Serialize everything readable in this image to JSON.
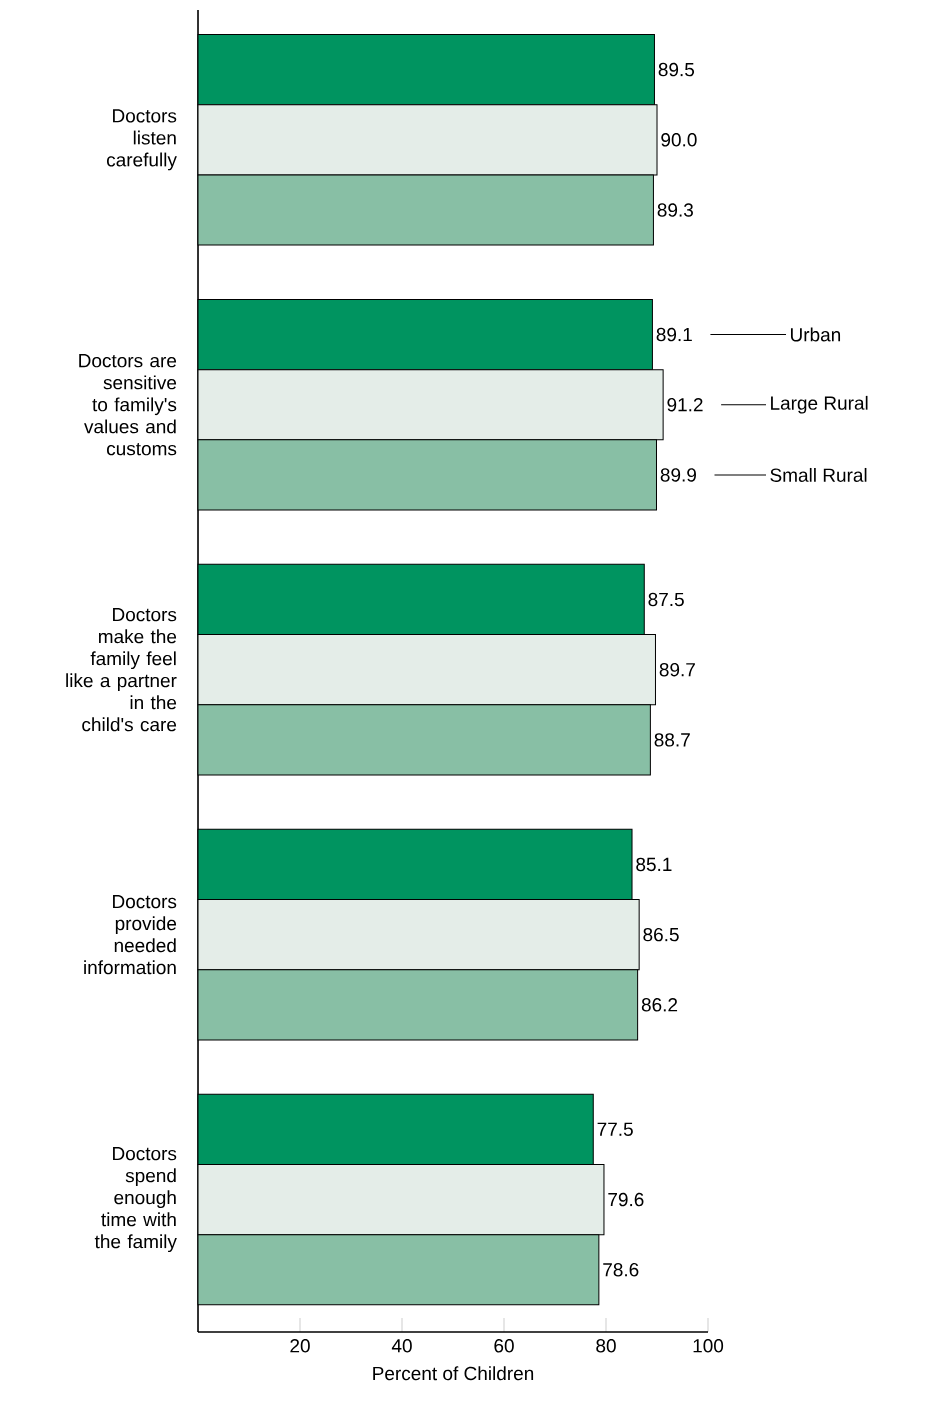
{
  "chart_data": {
    "type": "bar",
    "orientation": "horizontal",
    "xlabel": "Percent of Children",
    "categories": [
      "Doctors listen carefully",
      "Doctors are sensitive to family's values and customs",
      "Doctors make the family feel like a partner in the child's care",
      "Doctors provide needed information",
      "Doctors spend enough time with the family"
    ],
    "series": [
      {
        "name": "Urban",
        "color": "#009460",
        "values": [
          89.5,
          89.1,
          87.5,
          85.1,
          77.5
        ],
        "value_labels": [
          "89.5",
          "89.1",
          "87.5",
          "85.1",
          "77.5"
        ]
      },
      {
        "name": "Large Rural",
        "color": "#e4ede8",
        "values": [
          90.0,
          91.2,
          89.7,
          86.5,
          79.6
        ],
        "value_labels": [
          "90.0",
          "91.2",
          "89.7",
          "86.5",
          "79.6"
        ]
      },
      {
        "name": "Small Rural",
        "color": "#88bfa5",
        "values": [
          89.3,
          89.9,
          88.7,
          86.2,
          78.6
        ],
        "value_labels": [
          "89.3",
          "89.9",
          "88.7",
          "86.2",
          "78.6"
        ]
      }
    ],
    "xlim": [
      0,
      100
    ],
    "xticks": [
      20,
      40,
      60,
      80,
      100
    ],
    "legend": "right"
  }
}
